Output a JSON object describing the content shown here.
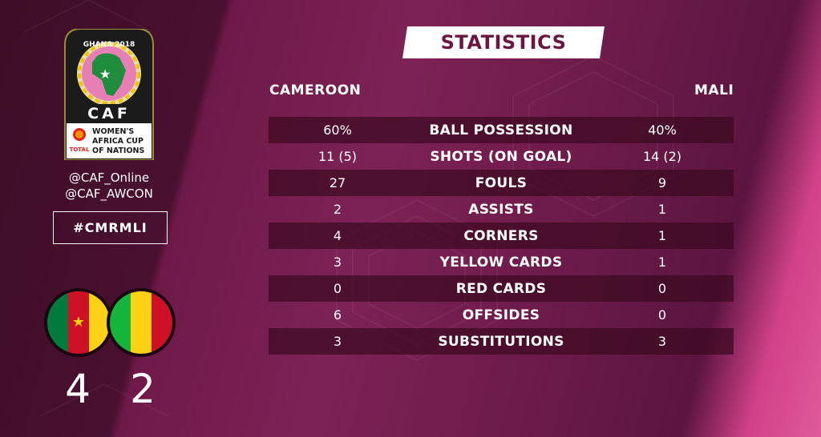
{
  "logo": {
    "edition": "GHANA 2018",
    "org": "CAF",
    "sponsor": "TOTAL",
    "tournament_line1": "WOMEN'S",
    "tournament_line2": "AFRICA CUP",
    "tournament_line3": "OF NATIONS"
  },
  "handles": [
    "@CAF_Online",
    "@CAF_AWCON"
  ],
  "hashtag": "#CMRMLI",
  "match": {
    "home_team": "CAMEROON",
    "away_team": "MALI",
    "home_score": "4",
    "away_score": "2"
  },
  "title": "STATISTICS",
  "stats": [
    {
      "label": "BALL POSSESSION",
      "home": "60%",
      "away": "40%"
    },
    {
      "label": "SHOTS (ON GOAL)",
      "home": "11 (5)",
      "away": "14 (2)"
    },
    {
      "label": "FOULS",
      "home": "27",
      "away": "9"
    },
    {
      "label": "ASSISTS",
      "home": "2",
      "away": "1"
    },
    {
      "label": "CORNERS",
      "home": "4",
      "away": "1"
    },
    {
      "label": "YELLOW CARDS",
      "home": "3",
      "away": "1"
    },
    {
      "label": "RED CARDS",
      "home": "0",
      "away": "0"
    },
    {
      "label": "OFFSIDES",
      "home": "6",
      "away": "0"
    },
    {
      "label": "SUBSTITUTIONS",
      "home": "3",
      "away": "3"
    }
  ],
  "colors": {
    "cameroon_green": "#007a3d",
    "cameroon_red": "#ce1126",
    "cameroon_yellow": "#fcd116",
    "mali_green": "#14b53a",
    "mali_yellow": "#fcd116",
    "mali_red": "#ce1126",
    "title_text": "#6b1640"
  }
}
